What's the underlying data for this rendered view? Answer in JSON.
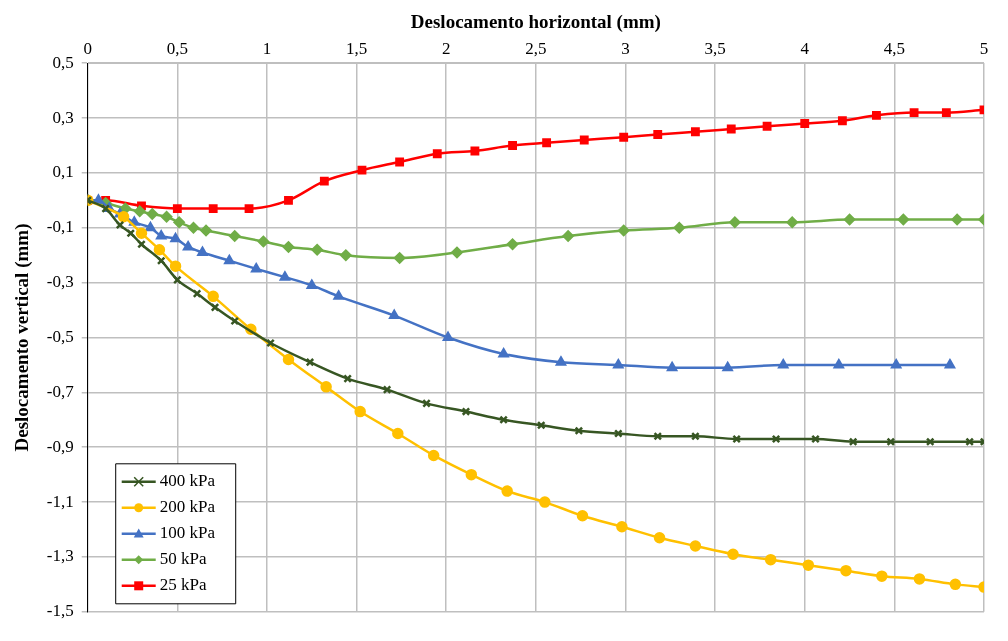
{
  "chart_data": {
    "type": "line",
    "xlabel": "Deslocamento horizontal (mm)",
    "ylabel": "Deslocamento vertical (mm)",
    "xlim": [
      0,
      5
    ],
    "ylim": [
      -1.5,
      0.5
    ],
    "xticks": [
      0,
      {
        "value": 0.5,
        "label": "0,5"
      },
      1,
      {
        "value": 1.5,
        "label": "1,5"
      },
      2,
      {
        "value": 2.5,
        "label": "2,5"
      },
      3,
      {
        "value": 3.5,
        "label": "3,5"
      },
      4,
      {
        "value": 4.5,
        "label": "4,5"
      },
      5
    ],
    "yticks": [
      {
        "value": 0.5,
        "label": "0,5"
      },
      {
        "value": 0.3,
        "label": "0,3"
      },
      {
        "value": 0.1,
        "label": "0,1"
      },
      {
        "value": -0.1,
        "label": "-0,1"
      },
      {
        "value": -0.3,
        "label": "-0,3"
      },
      {
        "value": -0.5,
        "label": "-0,5"
      },
      {
        "value": -0.7,
        "label": "-0,7"
      },
      {
        "value": -0.9,
        "label": "-0,9"
      },
      {
        "value": -1.1,
        "label": "-1,1"
      },
      {
        "value": -1.3,
        "label": "-1,3"
      },
      {
        "value": -1.5,
        "label": "-1,5"
      }
    ],
    "grid": true,
    "legend": "bottom left",
    "series": [
      {
        "name": "400 kPa",
        "color": "#375623",
        "marker": "cross",
        "x": [
          0,
          0.1,
          0.18,
          0.24,
          0.3,
          0.41,
          0.5,
          0.61,
          0.71,
          0.82,
          1.02,
          1.24,
          1.45,
          1.67,
          1.89,
          2.11,
          2.32,
          2.53,
          2.74,
          2.96,
          3.18,
          3.39,
          3.62,
          3.84,
          4.06,
          4.27,
          4.48,
          4.7,
          4.92,
          5.0
        ],
        "values": [
          0,
          -0.03,
          -0.09,
          -0.12,
          -0.16,
          -0.22,
          -0.29,
          -0.34,
          -0.39,
          -0.44,
          -0.52,
          -0.59,
          -0.65,
          -0.69,
          -0.74,
          -0.77,
          -0.8,
          -0.82,
          -0.84,
          -0.85,
          -0.86,
          -0.86,
          -0.87,
          -0.87,
          -0.87,
          -0.88,
          -0.88,
          -0.88,
          -0.88,
          -0.88
        ]
      },
      {
        "name": "200 kPa",
        "color": "#ffc000",
        "marker": "circle",
        "x": [
          0,
          0.2,
          0.3,
          0.4,
          0.49,
          0.7,
          0.91,
          1.12,
          1.33,
          1.52,
          1.73,
          1.93,
          2.14,
          2.34,
          2.55,
          2.76,
          2.98,
          3.19,
          3.39,
          3.6,
          3.81,
          4.02,
          4.23,
          4.43,
          4.64,
          4.84,
          5.0
        ],
        "values": [
          0,
          -0.06,
          -0.12,
          -0.18,
          -0.24,
          -0.35,
          -0.47,
          -0.58,
          -0.68,
          -0.77,
          -0.85,
          -0.93,
          -1.0,
          -1.06,
          -1.1,
          -1.15,
          -1.19,
          -1.23,
          -1.26,
          -1.29,
          -1.31,
          -1.33,
          -1.35,
          -1.37,
          -1.38,
          -1.4,
          -1.41
        ]
      },
      {
        "name": "100 kPa",
        "color": "#4472c4",
        "marker": "triangle",
        "x": [
          0,
          0.06,
          0.12,
          0.18,
          0.26,
          0.35,
          0.41,
          0.49,
          0.56,
          0.64,
          0.79,
          0.94,
          1.1,
          1.25,
          1.4,
          1.71,
          2.01,
          2.32,
          2.64,
          2.96,
          3.26,
          3.57,
          3.88,
          4.19,
          4.51,
          4.81
        ],
        "values": [
          0,
          0,
          -0.03,
          -0.05,
          -0.08,
          -0.1,
          -0.13,
          -0.14,
          -0.17,
          -0.19,
          -0.22,
          -0.25,
          -0.28,
          -0.31,
          -0.35,
          -0.42,
          -0.5,
          -0.56,
          -0.59,
          -0.6,
          -0.61,
          -0.61,
          -0.6,
          -0.6,
          -0.6,
          -0.6
        ]
      },
      {
        "name": "50 kPa",
        "color": "#70ad47",
        "marker": "diamond",
        "x": [
          0,
          0.1,
          0.21,
          0.29,
          0.36,
          0.44,
          0.51,
          0.59,
          0.66,
          0.82,
          0.98,
          1.12,
          1.28,
          1.44,
          1.74,
          2.06,
          2.37,
          2.68,
          2.99,
          3.3,
          3.61,
          3.93,
          4.25,
          4.55,
          4.85,
          5.0
        ],
        "values": [
          0,
          -0.01,
          -0.03,
          -0.04,
          -0.05,
          -0.06,
          -0.08,
          -0.1,
          -0.11,
          -0.13,
          -0.15,
          -0.17,
          -0.18,
          -0.2,
          -0.21,
          -0.19,
          -0.16,
          -0.13,
          -0.11,
          -0.1,
          -0.08,
          -0.08,
          -0.07,
          -0.07,
          -0.07,
          -0.07
        ]
      },
      {
        "name": "25 kPa",
        "color": "#ff0000",
        "marker": "square",
        "x": [
          0,
          0.1,
          0.3,
          0.5,
          0.7,
          0.9,
          1.12,
          1.32,
          1.53,
          1.74,
          1.95,
          2.16,
          2.37,
          2.56,
          2.77,
          2.99,
          3.18,
          3.39,
          3.59,
          3.79,
          4.0,
          4.21,
          4.4,
          4.61,
          4.79,
          5.0
        ],
        "values": [
          0,
          0,
          -0.02,
          -0.03,
          -0.03,
          -0.03,
          0,
          0.07,
          0.11,
          0.14,
          0.17,
          0.18,
          0.2,
          0.21,
          0.22,
          0.23,
          0.24,
          0.25,
          0.26,
          0.27,
          0.28,
          0.29,
          0.31,
          0.32,
          0.32,
          0.33
        ]
      }
    ]
  }
}
